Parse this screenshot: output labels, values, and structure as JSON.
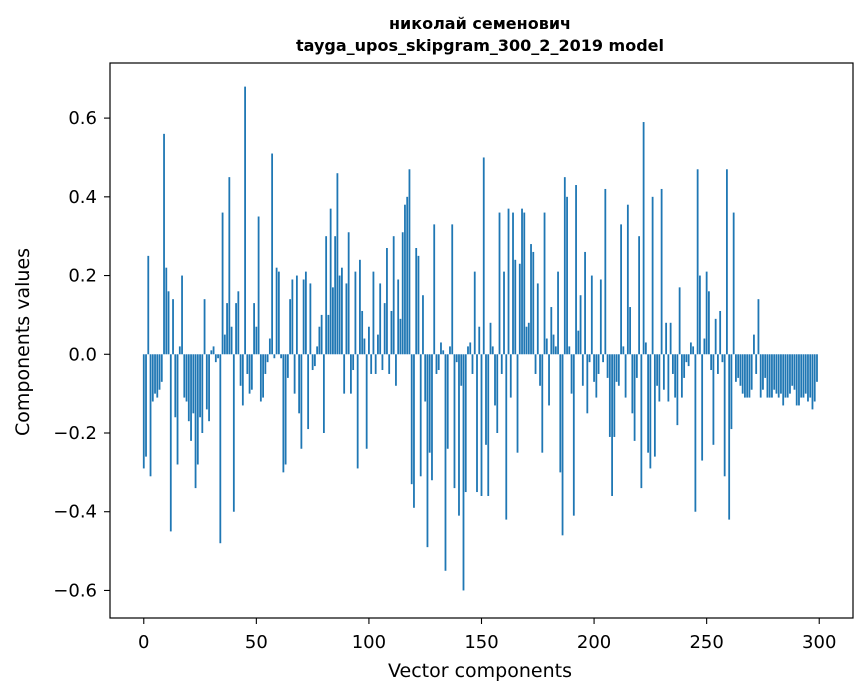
{
  "chart_data": {
    "type": "bar",
    "title_line1": "николай семенович",
    "title_line2": "tayga_upos_skipgram_300_2_2019 model",
    "xlabel": "Vector components",
    "ylabel": "Components values",
    "xlim": [
      -15,
      315
    ],
    "ylim": [
      -0.67,
      0.74
    ],
    "xticks": [
      0,
      50,
      100,
      150,
      200,
      250,
      300
    ],
    "xtick_labels": [
      "0",
      "50",
      "100",
      "150",
      "200",
      "250",
      "300"
    ],
    "yticks": [
      -0.6,
      -0.4,
      -0.2,
      0.0,
      0.2,
      0.4,
      0.6
    ],
    "ytick_labels": [
      "−0.6",
      "−0.4",
      "−0.2",
      "0.0",
      "0.2",
      "0.4",
      "0.6"
    ],
    "grid": false,
    "bar_color": "#1f77b4",
    "n_components": 300,
    "values": [
      -0.29,
      -0.26,
      0.25,
      -0.31,
      -0.12,
      -0.1,
      -0.11,
      -0.09,
      -0.07,
      0.56,
      0.22,
      0.16,
      -0.45,
      0.14,
      -0.16,
      -0.28,
      0.02,
      0.2,
      -0.11,
      -0.12,
      -0.17,
      -0.22,
      -0.15,
      -0.34,
      -0.28,
      -0.16,
      -0.2,
      0.14,
      -0.14,
      -0.17,
      0.01,
      0.02,
      -0.02,
      -0.01,
      -0.48,
      0.36,
      0.05,
      0.13,
      0.45,
      0.07,
      -0.4,
      0.13,
      0.16,
      -0.08,
      -0.13,
      0.68,
      -0.05,
      -0.1,
      -0.09,
      0.13,
      0.07,
      0.35,
      -0.12,
      -0.11,
      -0.05,
      -0.02,
      0.04,
      0.51,
      -0.01,
      0.22,
      0.21,
      -0.01,
      -0.3,
      -0.28,
      -0.06,
      0.14,
      0.19,
      -0.1,
      0.2,
      -0.15,
      -0.24,
      0.19,
      0.21,
      -0.19,
      0.18,
      -0.04,
      -0.03,
      0.02,
      0.07,
      0.1,
      -0.2,
      0.3,
      0.1,
      0.37,
      0.17,
      0.3,
      0.46,
      0.2,
      0.22,
      -0.1,
      0.18,
      0.31,
      -0.1,
      -0.04,
      0.21,
      -0.29,
      0.24,
      0.11,
      0.04,
      -0.24,
      0.07,
      -0.05,
      0.21,
      -0.05,
      0.05,
      0.18,
      -0.04,
      0.13,
      0.27,
      -0.05,
      0.11,
      0.3,
      -0.08,
      0.19,
      0.09,
      0.31,
      0.38,
      0.4,
      0.47,
      -0.33,
      -0.39,
      0.27,
      0.25,
      -0.31,
      0.15,
      -0.12,
      -0.49,
      -0.25,
      -0.32,
      0.33,
      -0.05,
      -0.04,
      0.03,
      0.01,
      -0.55,
      -0.24,
      0.02,
      0.33,
      -0.34,
      -0.02,
      -0.41,
      -0.08,
      -0.6,
      -0.35,
      0.02,
      0.03,
      -0.05,
      0.21,
      -0.35,
      0.07,
      -0.36,
      0.5,
      -0.23,
      -0.36,
      0.08,
      0.02,
      -0.13,
      -0.2,
      0.36,
      -0.05,
      0.21,
      -0.42,
      0.37,
      -0.11,
      0.36,
      0.24,
      -0.25,
      0.23,
      0.37,
      0.36,
      0.07,
      0.08,
      0.28,
      0.26,
      -0.05,
      0.18,
      -0.08,
      -0.25,
      0.36,
      0.04,
      -0.13,
      0.12,
      0.05,
      0.02,
      0.21,
      -0.3,
      -0.46,
      0.45,
      0.4,
      0.02,
      -0.1,
      -0.41,
      0.43,
      0.06,
      0.15,
      -0.08,
      0.26,
      -0.15,
      -0.02,
      0.2,
      -0.07,
      -0.11,
      -0.05,
      0.19,
      -0.02,
      0.42,
      -0.06,
      -0.21,
      -0.36,
      -0.21,
      -0.07,
      -0.08,
      0.33,
      0.02,
      -0.11,
      0.38,
      0.12,
      -0.15,
      -0.22,
      -0.06,
      0.3,
      -0.34,
      0.59,
      0.03,
      -0.25,
      -0.29,
      0.4,
      -0.26,
      -0.08,
      -0.12,
      0.42,
      -0.09,
      0.08,
      -0.12,
      0.08,
      -0.05,
      -0.11,
      -0.18,
      0.17,
      -0.11,
      -0.06,
      -0.02,
      -0.03,
      0.03,
      0.02,
      -0.4,
      0.47,
      0.2,
      -0.27,
      0.04,
      0.21,
      0.16,
      -0.04,
      -0.23,
      0.09,
      -0.05,
      0.11,
      -0.02,
      -0.31,
      0.47,
      -0.42,
      -0.19,
      0.36,
      -0.07,
      -0.06,
      -0.08,
      -0.1,
      -0.11,
      -0.11,
      -0.11,
      -0.09,
      0.05,
      -0.05,
      0.14,
      -0.11,
      -0.09,
      -0.06,
      -0.11,
      -0.11,
      -0.11,
      -0.09,
      -0.1,
      -0.11,
      -0.1,
      -0.13,
      -0.11,
      -0.11,
      -0.1,
      -0.08,
      -0.09,
      -0.13,
      -0.13,
      -0.11,
      -0.11,
      -0.1,
      -0.12,
      -0.11,
      -0.14,
      -0.12,
      -0.07
    ]
  }
}
